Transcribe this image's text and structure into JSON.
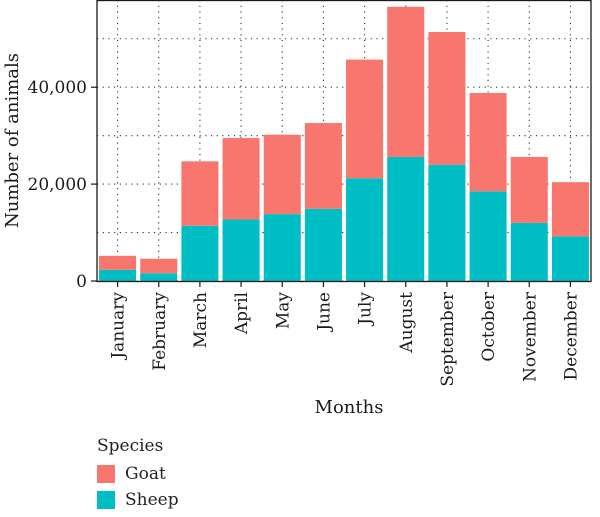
{
  "chart_data": {
    "type": "bar",
    "stacked": true,
    "categories": [
      "January",
      "February",
      "March",
      "April",
      "May",
      "June",
      "July",
      "August",
      "September",
      "October",
      "November",
      "December"
    ],
    "series": [
      {
        "name": "Sheep",
        "color": "#00BFC4",
        "values": [
          2300,
          1600,
          11400,
          12700,
          13800,
          14900,
          21200,
          25600,
          24000,
          18500,
          12000,
          9200
        ]
      },
      {
        "name": "Goat",
        "color": "#F8766D",
        "values": [
          2900,
          3000,
          13300,
          16800,
          16400,
          17700,
          24500,
          31000,
          27400,
          20300,
          13600,
          11200
        ]
      }
    ],
    "xlabel": "Months",
    "ylabel": "Number of animals",
    "ylim": [
      0,
      58000
    ],
    "yticks": [
      0,
      20000,
      40000
    ],
    "ytick_labels": [
      "0",
      "20,000",
      "40,000"
    ],
    "grid": "dotted",
    "legend": {
      "title": "Species",
      "placement": "bottom-left",
      "items": [
        {
          "label": "Goat",
          "color": "#F8766D"
        },
        {
          "label": "Sheep",
          "color": "#00BFC4"
        }
      ]
    }
  }
}
